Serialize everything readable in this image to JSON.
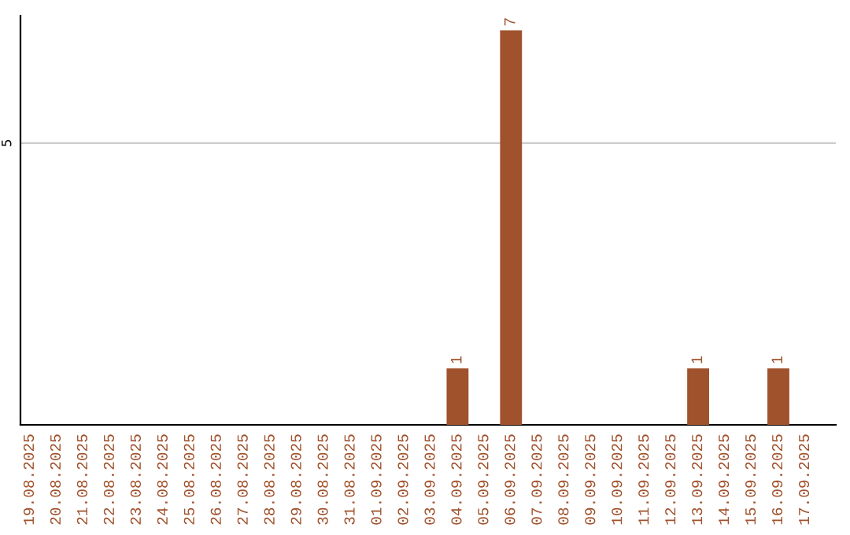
{
  "chart_data": {
    "type": "bar",
    "data_labels": true,
    "categories": [
      "19.08.2025",
      "20.08.2025",
      "21.08.2025",
      "22.08.2025",
      "23.08.2025",
      "24.08.2025",
      "25.08.2025",
      "26.08.2025",
      "27.08.2025",
      "28.08.2025",
      "29.08.2025",
      "30.08.2025",
      "31.08.2025",
      "01.09.2025",
      "02.09.2025",
      "03.09.2025",
      "04.09.2025",
      "05.09.2025",
      "06.09.2025",
      "07.09.2025",
      "08.09.2025",
      "09.09.2025",
      "10.09.2025",
      "11.09.2025",
      "12.09.2025",
      "13.09.2025",
      "14.09.2025",
      "15.09.2025",
      "16.09.2025",
      "17.09.2025"
    ],
    "values": [
      null,
      null,
      null,
      null,
      null,
      null,
      null,
      null,
      null,
      null,
      null,
      null,
      null,
      null,
      null,
      null,
      1,
      null,
      7,
      null,
      null,
      null,
      null,
      null,
      null,
      1,
      null,
      null,
      1,
      null
    ],
    "color": "#a0522d",
    "ref_lines": [
      {
        "axis": "y",
        "value": 5,
        "label": "5",
        "color": "#cccccc"
      }
    ]
  }
}
